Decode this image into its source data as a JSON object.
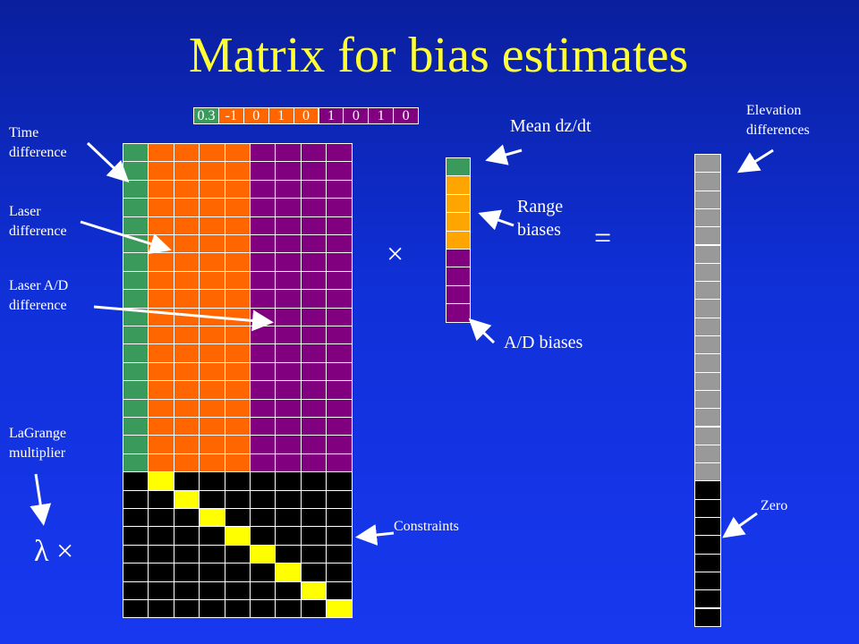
{
  "title": "Matrix for bias estimates",
  "labels": {
    "time_difference": [
      "Time",
      "difference"
    ],
    "laser_difference": [
      "Laser",
      "difference"
    ],
    "laser_ad_difference": [
      "Laser A/D",
      "difference"
    ],
    "lagrange_multiplier": [
      "LaGrange",
      "multiplier"
    ],
    "mean_dzdt": "Mean dz/dt",
    "range_biases": [
      "Range",
      "biases"
    ],
    "ad_biases": "A/D biases",
    "elevation_differences": [
      "Elevation",
      "differences"
    ],
    "zero": "Zero",
    "constraints": "Constraints"
  },
  "operators": {
    "times": "×",
    "equals": "=",
    "lambda_times": "λ ×"
  },
  "top_vector": [
    "0.3",
    "-1",
    "0",
    "1",
    "0",
    "1",
    "0",
    "1",
    "0"
  ],
  "colors": {
    "title": "#ffff33",
    "green": "#3a9a5c",
    "orange": "#ff6600",
    "purple": "#800080",
    "black": "#000000",
    "yellow": "#ffff00",
    "gray": "#999999",
    "light_orange": "#ffa500",
    "grid_line": "#ffffff"
  },
  "matrix": {
    "columns": [
      "green",
      "orange",
      "orange",
      "orange",
      "orange",
      "purple",
      "purple",
      "purple",
      "purple"
    ],
    "data_rows": 18,
    "constraint_rows": 8,
    "constraint_diagonal": "yellow",
    "constraint_fill": "black"
  },
  "bias_vector": [
    "green",
    "orange",
    "orange",
    "orange",
    "orange",
    "purple",
    "purple",
    "purple",
    "purple"
  ],
  "result_vector": {
    "gray_rows": 18,
    "black_rows": 8
  }
}
